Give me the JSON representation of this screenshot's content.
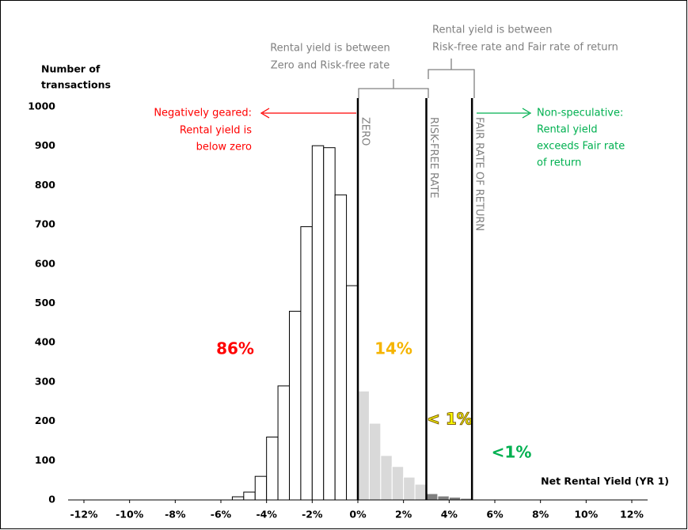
{
  "chart_data": {
    "type": "histogram",
    "ylabel": [
      "Number of",
      "transactions"
    ],
    "xlabel": "Net Rental Yield (YR 1)",
    "bins": [
      -5.5,
      -5,
      -4.5,
      -4,
      -3.5,
      -3,
      -2.5,
      -2,
      -1.5,
      -1,
      -0.5,
      0,
      0.5,
      1,
      1.5,
      2,
      2.5,
      3,
      3.5,
      4,
      4.5,
      5,
      5.5,
      6,
      6.5
    ],
    "counts": [
      8,
      20,
      60,
      160,
      290,
      480,
      695,
      901,
      896,
      776,
      545,
      277,
      195,
      113,
      85,
      58,
      40,
      16,
      10,
      7,
      4,
      2,
      2,
      1
    ],
    "bar_colors": [
      "#ffffff",
      "#ffffff",
      "#ffffff",
      "#ffffff",
      "#ffffff",
      "#ffffff",
      "#ffffff",
      "#ffffff",
      "#ffffff",
      "#ffffff",
      "#ffffff",
      "#d9d9d9",
      "#d9d9d9",
      "#d9d9d9",
      "#d9d9d9",
      "#d9d9d9",
      "#d9d9d9",
      "#7f7f7f",
      "#7f7f7f",
      "#7f7f7f",
      "#7f7f7f",
      "#7f7f7f",
      "#7f7f7f",
      "#7f7f7f"
    ],
    "xlim": [
      -12,
      12
    ],
    "ylim": [
      0,
      1000
    ],
    "xticks": [
      {
        "value": -12,
        "label": "-12%"
      },
      {
        "value": -10,
        "label": "-10%"
      },
      {
        "value": -8,
        "label": "-8%"
      },
      {
        "value": -6,
        "label": "-6%"
      },
      {
        "value": -4,
        "label": "-4%"
      },
      {
        "value": -2,
        "label": "-2%"
      },
      {
        "value": 0,
        "label": "0%"
      },
      {
        "value": 2,
        "label": "2%"
      },
      {
        "value": 4,
        "label": "4%"
      },
      {
        "value": 6,
        "label": "6%"
      },
      {
        "value": 8,
        "label": "8%"
      },
      {
        "value": 10,
        "label": "10%"
      },
      {
        "value": 12,
        "label": "12%"
      }
    ],
    "yticks": [
      0,
      100,
      200,
      300,
      400,
      500,
      600,
      700,
      800,
      900,
      1000
    ],
    "reference_lines": [
      {
        "value": 0,
        "label": "ZERO"
      },
      {
        "value": 3,
        "label": "RISK-FREE RATE"
      },
      {
        "value": 5,
        "label": "FAIR RATE OF RETURN"
      }
    ],
    "annotations": {
      "negative": [
        "Negatively geared:",
        "Rental yield is",
        "below zero"
      ],
      "nonspec": [
        "Non-speculative:",
        "Rental yield",
        "exceeds Fair rate",
        "of return"
      ],
      "bracket1": [
        "Rental yield is between",
        "Zero and Risk-free rate"
      ],
      "bracket2": [
        "Rental yield is between",
        "Risk-free rate and Fair rate of return"
      ],
      "pct_negative": "86%",
      "pct_zero_rfr": "14%",
      "pct_rfr_fair": "< 1%",
      "pct_above_fair": "<1%"
    }
  }
}
